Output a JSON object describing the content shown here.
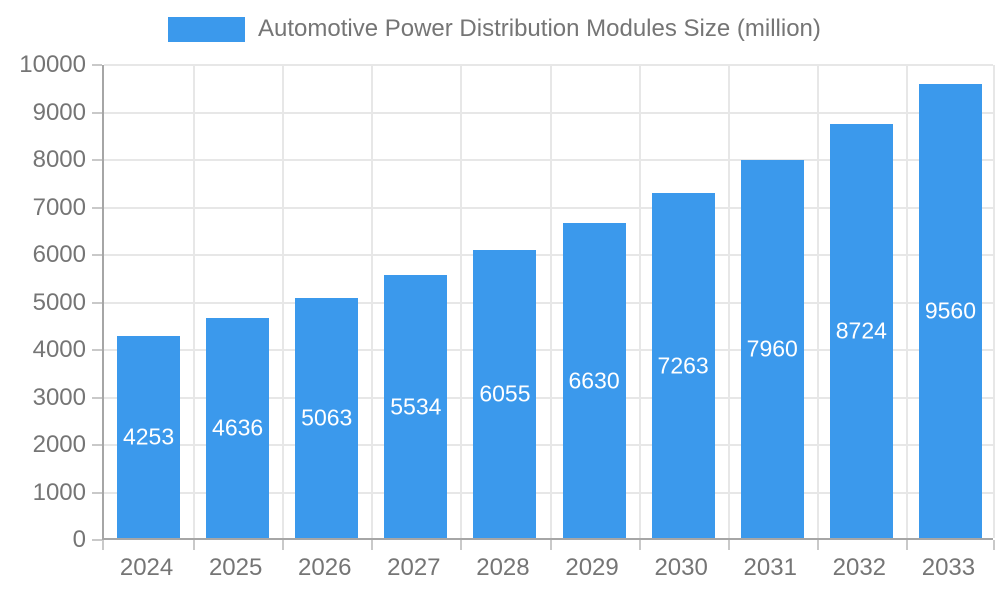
{
  "chart_data": {
    "type": "bar",
    "title": "Automotive Power Distribution Modules Size (million)",
    "xlabel": "",
    "ylabel": "",
    "categories": [
      "2024",
      "2025",
      "2026",
      "2027",
      "2028",
      "2029",
      "2030",
      "2031",
      "2032",
      "2033"
    ],
    "values": [
      4253,
      4636,
      5063,
      5534,
      6055,
      6630,
      7263,
      7960,
      8724,
      9560
    ],
    "series": [
      {
        "name": "Automotive Power Distribution Modules Size (million)",
        "values": [
          4253,
          4636,
          5063,
          5534,
          6055,
          6630,
          7263,
          7960,
          8724,
          9560
        ]
      }
    ],
    "ylim": [
      0,
      10000
    ],
    "y_ticks": [
      0,
      1000,
      2000,
      3000,
      4000,
      5000,
      6000,
      7000,
      8000,
      9000,
      10000
    ],
    "grid": true,
    "legend_position": "top",
    "value_labels": "inside-center"
  },
  "legend": {
    "label": "Automotive Power Distribution Modules Size (million)"
  },
  "colors": {
    "bar": "#3b99ec",
    "value_text": "#ffffff",
    "axis_text": "#757575",
    "grid": "#e7e7e7",
    "axis_line": "#a6a6a6",
    "tick": "#c9c9c9",
    "background": "#ffffff"
  }
}
